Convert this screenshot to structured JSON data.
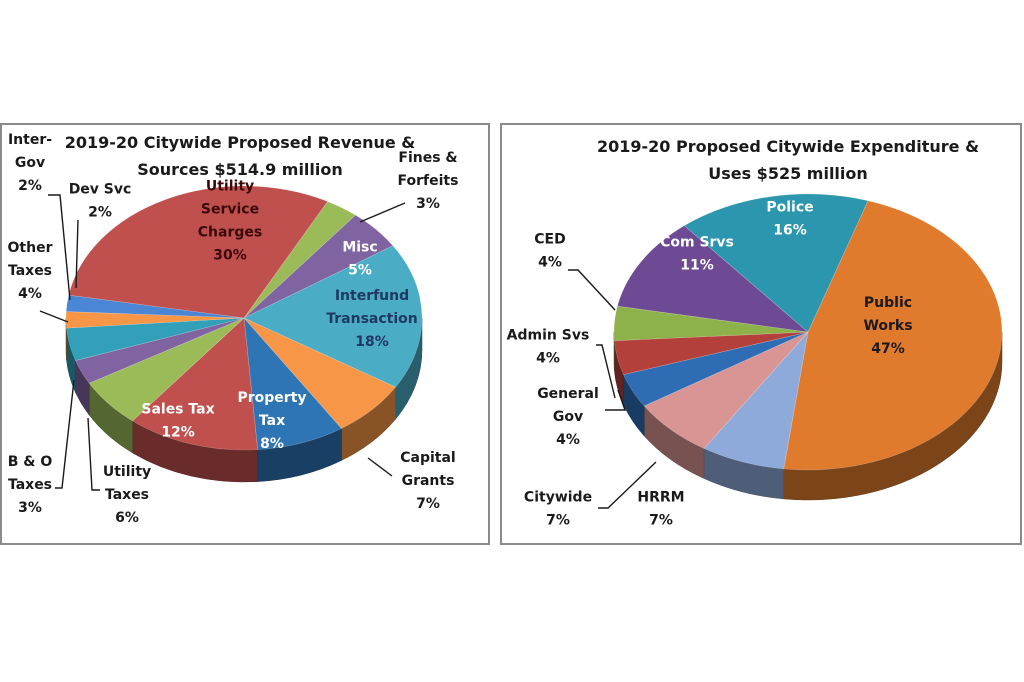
{
  "chart_data": [
    {
      "type": "pie",
      "title": "2019-20 Citywide Proposed Revenue & Sources $514.9 million",
      "title_lines": [
        "2019-20 Citywide Proposed Revenue &",
        "Sources $514.9 million"
      ],
      "style": "3d",
      "slices": [
        {
          "label": "Fines & Forfeits",
          "lines": [
            "Fines &",
            "Forfeits",
            "3%"
          ],
          "value": 3,
          "color": "#9bbb59",
          "label_pos": "outside"
        },
        {
          "label": "Misc",
          "lines": [
            "Misc",
            "5%"
          ],
          "value": 5,
          "color": "#8064a2",
          "label_pos": "inside",
          "text_color": "#ffffff"
        },
        {
          "label": "Interfund Transaction",
          "lines": [
            "Interfund",
            "Transaction",
            "18%"
          ],
          "value": 18,
          "color": "#4bacc6",
          "label_pos": "inside",
          "text_color": "#1f3864"
        },
        {
          "label": "Capital Grants",
          "lines": [
            "Capital",
            "Grants",
            "7%"
          ],
          "value": 7,
          "color": "#f79646",
          "label_pos": "outside"
        },
        {
          "label": "Property Tax",
          "lines": [
            "Property",
            "Tax",
            "8%"
          ],
          "value": 8,
          "color": "#2e75b6",
          "label_pos": "inside",
          "text_color": "#ffffff"
        },
        {
          "label": "Sales Tax",
          "lines": [
            "Sales Tax",
            "12%"
          ],
          "value": 12,
          "color": "#c0504d",
          "label_pos": "inside",
          "text_color": "#ffffff"
        },
        {
          "label": "Utility Taxes",
          "lines": [
            "Utility",
            "Taxes",
            "6%"
          ],
          "value": 6,
          "color": "#9bbb59",
          "label_pos": "outside"
        },
        {
          "label": "B & O Taxes",
          "lines": [
            "B & O",
            "Taxes",
            "3%"
          ],
          "value": 3,
          "color": "#8064a2",
          "label_pos": "outside"
        },
        {
          "label": "Other Taxes",
          "lines": [
            "Other",
            "Taxes",
            "4%"
          ],
          "value": 4,
          "color": "#31a0b8",
          "label_pos": "outside"
        },
        {
          "label": "Inter-Gov",
          "lines": [
            "Inter-",
            "Gov",
            "2%"
          ],
          "value": 2,
          "color": "#f79646",
          "label_pos": "outside"
        },
        {
          "label": "Dev Svc",
          "lines": [
            "Dev Svc",
            "2%"
          ],
          "value": 2,
          "color": "#4a86d4",
          "label_pos": "outside"
        },
        {
          "label": "Utility Service Charges",
          "lines": [
            "Utility",
            "Service",
            "Charges",
            "30%"
          ],
          "value": 30,
          "color": "#c0504d",
          "label_pos": "inside",
          "text_color": "#3a0a0a"
        }
      ]
    },
    {
      "type": "pie",
      "title": "2019-20 Proposed Citywide Expenditure & Uses $525 million",
      "title_lines": [
        "2019-20 Proposed Citywide Expenditure &",
        "Uses $525 million"
      ],
      "style": "3d",
      "slices": [
        {
          "label": "Public Works",
          "lines": [
            "Public",
            "Works",
            "47%"
          ],
          "value": 47,
          "color": "#e07b2e",
          "label_pos": "inside",
          "text_color": "#1a1a1a"
        },
        {
          "label": "HRRM",
          "lines": [
            "HRRM",
            "7%"
          ],
          "value": 7,
          "color": "#8eaadb",
          "label_pos": "outside"
        },
        {
          "label": "Citywide",
          "lines": [
            "Citywide",
            "7%"
          ],
          "value": 7,
          "color": "#d99594",
          "label_pos": "outside"
        },
        {
          "label": "General Gov",
          "lines": [
            "General",
            "Gov",
            "4%"
          ],
          "value": 4,
          "color": "#2e6db4",
          "label_pos": "outside"
        },
        {
          "label": "Admin Svs",
          "lines": [
            "Admin Svs",
            "4%"
          ],
          "value": 4,
          "color": "#b3403a",
          "label_pos": "outside"
        },
        {
          "label": "CED",
          "lines": [
            "CED",
            "4%"
          ],
          "value": 4,
          "color": "#8db24a",
          "label_pos": "outside"
        },
        {
          "label": "Com Srvs",
          "lines": [
            "Com Srvs",
            "11%"
          ],
          "value": 11,
          "color": "#6f4a94",
          "label_pos": "inside",
          "text_color": "#ffffff"
        },
        {
          "label": "Police",
          "lines": [
            "Police",
            "16%"
          ],
          "value": 16,
          "color": "#2b96ad",
          "label_pos": "inside",
          "text_color": "#ffffff"
        }
      ]
    }
  ]
}
